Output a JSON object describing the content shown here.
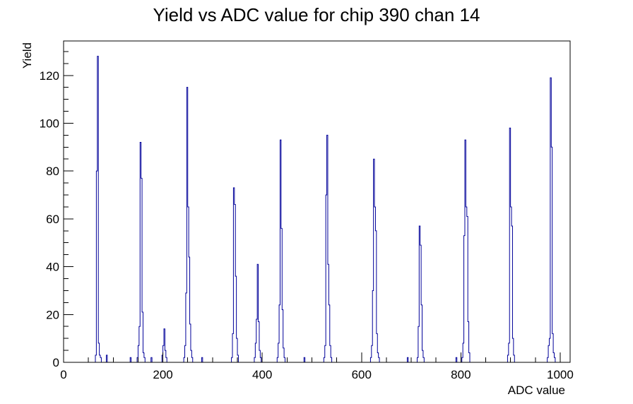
{
  "title": "Yield vs ADC value for chip 390 chan 14",
  "chart_data": {
    "type": "bar",
    "subtype": "histogram-step-outline",
    "title": "Yield vs ADC value for chip 390 chan 14",
    "xlabel": "ADC value",
    "ylabel": "Yield",
    "xlim": [
      0,
      1020
    ],
    "ylim": [
      0,
      134.4
    ],
    "grid": false,
    "legend": "none",
    "line_color": "#000099",
    "frame_color": "#000000",
    "background_color": "#ffffff",
    "x_major_ticks": [
      0,
      200,
      400,
      600,
      800,
      1000
    ],
    "x_tick_labels": [
      "0",
      "200",
      "400",
      "600",
      "800",
      "1000"
    ],
    "x_minor_step": 50,
    "y_major_ticks": [
      0,
      20,
      40,
      60,
      80,
      100,
      120
    ],
    "y_tick_labels": [
      "0",
      "20",
      "40",
      "60",
      "80",
      "100",
      "120"
    ],
    "y_minor_step": 5,
    "bin_width": 2,
    "peak_summary": [
      {
        "adc": 68,
        "yield": 128
      },
      {
        "adc": 154,
        "yield": 92
      },
      {
        "adc": 202,
        "yield": 14
      },
      {
        "adc": 248,
        "yield": 115
      },
      {
        "adc": 342,
        "yield": 73
      },
      {
        "adc": 390,
        "yield": 41
      },
      {
        "adc": 436,
        "yield": 93
      },
      {
        "adc": 530,
        "yield": 95
      },
      {
        "adc": 624,
        "yield": 85
      },
      {
        "adc": 716,
        "yield": 57
      },
      {
        "adc": 808,
        "yield": 93
      },
      {
        "adc": 898,
        "yield": 98
      },
      {
        "adc": 980,
        "yield": 119
      }
    ],
    "bins": [
      [
        64,
        3
      ],
      [
        66,
        80
      ],
      [
        68,
        128
      ],
      [
        70,
        8
      ],
      [
        72,
        3
      ],
      [
        74,
        2
      ],
      [
        86,
        3
      ],
      [
        134,
        2
      ],
      [
        148,
        2
      ],
      [
        150,
        7
      ],
      [
        152,
        15
      ],
      [
        154,
        92
      ],
      [
        156,
        77
      ],
      [
        158,
        21
      ],
      [
        160,
        4
      ],
      [
        162,
        2
      ],
      [
        176,
        2
      ],
      [
        198,
        3
      ],
      [
        200,
        7
      ],
      [
        202,
        14
      ],
      [
        204,
        5
      ],
      [
        206,
        2
      ],
      [
        242,
        2
      ],
      [
        244,
        7
      ],
      [
        246,
        29
      ],
      [
        248,
        115
      ],
      [
        250,
        65
      ],
      [
        252,
        44
      ],
      [
        254,
        16
      ],
      [
        256,
        5
      ],
      [
        258,
        2
      ],
      [
        278,
        2
      ],
      [
        338,
        2
      ],
      [
        340,
        12
      ],
      [
        342,
        73
      ],
      [
        344,
        66
      ],
      [
        346,
        36
      ],
      [
        348,
        10
      ],
      [
        350,
        3
      ],
      [
        384,
        2
      ],
      [
        386,
        8
      ],
      [
        388,
        18
      ],
      [
        390,
        41
      ],
      [
        392,
        17
      ],
      [
        394,
        5
      ],
      [
        396,
        2
      ],
      [
        430,
        2
      ],
      [
        432,
        8
      ],
      [
        434,
        24
      ],
      [
        436,
        93
      ],
      [
        438,
        56
      ],
      [
        440,
        22
      ],
      [
        442,
        6
      ],
      [
        444,
        2
      ],
      [
        484,
        2
      ],
      [
        524,
        2
      ],
      [
        526,
        7
      ],
      [
        528,
        70
      ],
      [
        530,
        95
      ],
      [
        532,
        41
      ],
      [
        534,
        24
      ],
      [
        536,
        7
      ],
      [
        538,
        2
      ],
      [
        618,
        2
      ],
      [
        620,
        7
      ],
      [
        622,
        30
      ],
      [
        624,
        85
      ],
      [
        626,
        65
      ],
      [
        628,
        55
      ],
      [
        630,
        12
      ],
      [
        632,
        4
      ],
      [
        634,
        2
      ],
      [
        692,
        2
      ],
      [
        712,
        2
      ],
      [
        714,
        15
      ],
      [
        716,
        57
      ],
      [
        718,
        49
      ],
      [
        720,
        24
      ],
      [
        722,
        5
      ],
      [
        724,
        2
      ],
      [
        790,
        2
      ],
      [
        802,
        2
      ],
      [
        804,
        8
      ],
      [
        806,
        53
      ],
      [
        808,
        93
      ],
      [
        810,
        65
      ],
      [
        812,
        61
      ],
      [
        814,
        17
      ],
      [
        816,
        4
      ],
      [
        894,
        3
      ],
      [
        896,
        8
      ],
      [
        898,
        98
      ],
      [
        900,
        65
      ],
      [
        902,
        57
      ],
      [
        904,
        10
      ],
      [
        906,
        3
      ],
      [
        974,
        2
      ],
      [
        976,
        7
      ],
      [
        978,
        10
      ],
      [
        980,
        119
      ],
      [
        982,
        90
      ],
      [
        984,
        12
      ],
      [
        986,
        4
      ],
      [
        988,
        2
      ]
    ]
  }
}
